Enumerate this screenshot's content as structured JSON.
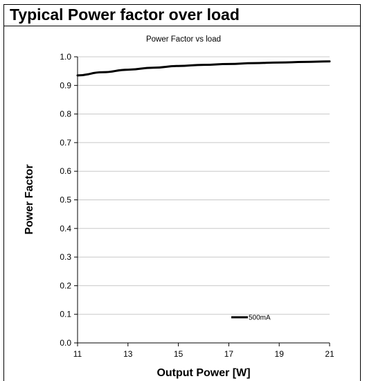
{
  "header": {
    "title": "Typical Power factor over load"
  },
  "chart_data": {
    "type": "line",
    "title": "Power Factor vs load",
    "xlabel": "Output Power [W]",
    "ylabel": "Power Factor",
    "xlim": [
      11,
      21
    ],
    "ylim": [
      0.0,
      1.0
    ],
    "x_ticks": [
      11,
      13,
      15,
      17,
      19,
      21
    ],
    "y_ticks": [
      "0.0",
      "0.1",
      "0.2",
      "0.3",
      "0.4",
      "0.5",
      "0.6",
      "0.7",
      "0.8",
      "0.9",
      "1.0"
    ],
    "grid": "horizontal",
    "legend_position": "bottom-right",
    "series": [
      {
        "name": "500mA",
        "color": "#000000",
        "x": [
          11,
          12,
          13,
          14,
          15,
          16,
          17,
          18,
          19,
          20,
          21
        ],
        "y": [
          0.935,
          0.946,
          0.955,
          0.962,
          0.968,
          0.972,
          0.975,
          0.978,
          0.98,
          0.982,
          0.984
        ]
      }
    ]
  }
}
